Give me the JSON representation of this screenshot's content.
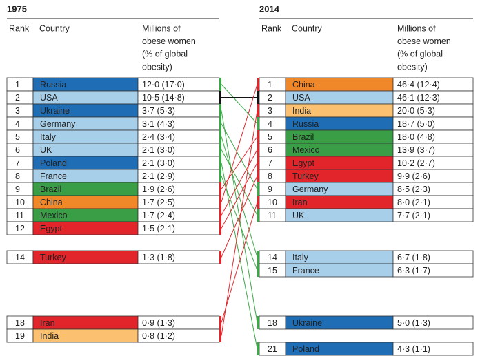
{
  "panels": [
    {
      "title": "1975",
      "headers": {
        "rank": "Rank",
        "country": "Country",
        "value": [
          "Millions of",
          "obese women",
          "(% of global",
          "obesity)"
        ]
      },
      "rows": [
        {
          "rank": "1",
          "country": "Russia",
          "value": "12·0 (17·0)",
          "color": "#1f6db4"
        },
        {
          "rank": "2",
          "country": "USA",
          "value": "10·5 (14·8)",
          "color": "#a8cfe9"
        },
        {
          "rank": "3",
          "country": "Ukraine",
          "value": "3·7 (5·3)",
          "color": "#1f6db4"
        },
        {
          "rank": "4",
          "country": "Germany",
          "value": "3·1 (4·3)",
          "color": "#a8cfe9"
        },
        {
          "rank": "5",
          "country": "Italy",
          "value": "2·4 (3·4)",
          "color": "#a8cfe9"
        },
        {
          "rank": "6",
          "country": "UK",
          "value": "2·1 (3·0)",
          "color": "#a8cfe9"
        },
        {
          "rank": "7",
          "country": "Poland",
          "value": "2·1 (3·0)",
          "color": "#1f6db4"
        },
        {
          "rank": "8",
          "country": "France",
          "value": "2·1 (2·9)",
          "color": "#a8cfe9"
        },
        {
          "rank": "9",
          "country": "Brazil",
          "value": "1·9 (2·6)",
          "color": "#3a9e46"
        },
        {
          "rank": "10",
          "country": "China",
          "value": "1·7 (2·5)",
          "color": "#f0882a"
        },
        {
          "rank": "11",
          "country": "Mexico",
          "value": "1·7 (2·4)",
          "color": "#3a9e46"
        },
        {
          "rank": "12",
          "country": "Egypt",
          "value": "1·5 (2·1)",
          "color": "#e2252b"
        },
        {
          "rank": "14",
          "country": "Turkey",
          "value": "1·3 (1·8)",
          "color": "#e2252b"
        },
        {
          "rank": "18",
          "country": "Iran",
          "value": "0·9 (1·3)",
          "color": "#e2252b"
        },
        {
          "rank": "19",
          "country": "India",
          "value": "0·8 (1·2)",
          "color": "#fbc070"
        }
      ]
    },
    {
      "title": "2014",
      "headers": {
        "rank": "Rank",
        "country": "Country",
        "value": [
          "Millions of",
          "obese women",
          "(% of global",
          "obesity)"
        ]
      },
      "rows": [
        {
          "rank": "1",
          "country": "China",
          "value": "46·4 (12·4)",
          "color": "#f0882a"
        },
        {
          "rank": "2",
          "country": "USA",
          "value": "46·1 (12·3)",
          "color": "#a8cfe9"
        },
        {
          "rank": "3",
          "country": "India",
          "value": "20·0 (5·3)",
          "color": "#fbc070"
        },
        {
          "rank": "4",
          "country": "Russia",
          "value": "18·7 (5·0)",
          "color": "#1f6db4"
        },
        {
          "rank": "5",
          "country": "Brazil",
          "value": "18·0 (4·8)",
          "color": "#3a9e46"
        },
        {
          "rank": "6",
          "country": "Mexico",
          "value": "13·9 (3·7)",
          "color": "#3a9e46"
        },
        {
          "rank": "7",
          "country": "Egypt",
          "value": "10·2 (2·7)",
          "color": "#e2252b"
        },
        {
          "rank": "8",
          "country": "Turkey",
          "value": "9·9 (2·6)",
          "color": "#e2252b"
        },
        {
          "rank": "9",
          "country": "Germany",
          "value": "8·5 (2·3)",
          "color": "#a8cfe9"
        },
        {
          "rank": "10",
          "country": "Iran",
          "value": "8·0 (2·1)",
          "color": "#e2252b"
        },
        {
          "rank": "11",
          "country": "UK",
          "value": "7·7 (2·1)",
          "color": "#a8cfe9"
        },
        {
          "rank": "14",
          "country": "Italy",
          "value": "6·7 (1·8)",
          "color": "#a8cfe9"
        },
        {
          "rank": "15",
          "country": "France",
          "value": "6·3 (1·7)",
          "color": "#a8cfe9"
        },
        {
          "rank": "18",
          "country": "Ukraine",
          "value": "5·0 (1·3)",
          "color": "#1f6db4"
        },
        {
          "rank": "21",
          "country": "Poland",
          "value": "4·3 (1·1)",
          "color": "#1f6db4"
        }
      ]
    }
  ]
}
